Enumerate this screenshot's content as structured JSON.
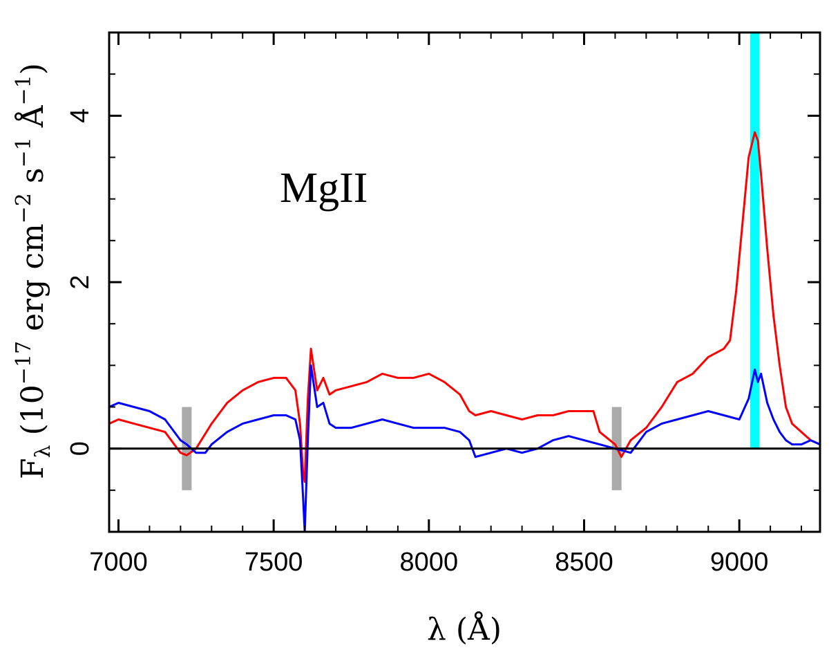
{
  "chart_data": {
    "type": "line",
    "title": "",
    "xlabel": "λ (Å)",
    "ylabel_parts": {
      "f": "F",
      "lambda_sub": "λ",
      "open": " (10",
      "exp1": "−17",
      "erg": " erg cm",
      "exp2": "−2",
      "s": " s",
      "exp3": "−1",
      "ang": " Å",
      "exp4": "−1",
      "close": ")"
    },
    "xlim": [
      6970,
      9260
    ],
    "ylim": [
      -1.0,
      5.0
    ],
    "xticks": [
      7000,
      7500,
      8000,
      8500,
      9000
    ],
    "xtick_labels": [
      "7000",
      "7500",
      "8000",
      "8500",
      "9000"
    ],
    "yticks": [
      0,
      2,
      4
    ],
    "ytick_labels": [
      "0",
      "2",
      "4"
    ],
    "annotation": "MgII",
    "zero_line": 0,
    "highlight_band": {
      "xmin": 9035,
      "xmax": 9065,
      "color": "#00ffff"
    },
    "continuum_markers": [
      {
        "x": 7220,
        "ymin": -0.5,
        "ymax": 0.5,
        "color": "#aaaaaa"
      },
      {
        "x": 8605,
        "ymin": -0.5,
        "ymax": 0.5,
        "color": "#aaaaaa"
      }
    ],
    "series": [
      {
        "name": "red spectrum",
        "color": "#ff0000",
        "x": [
          6970,
          7000,
          7050,
          7100,
          7150,
          7200,
          7220,
          7250,
          7300,
          7350,
          7400,
          7450,
          7500,
          7540,
          7570,
          7585,
          7595,
          7600,
          7610,
          7620,
          7640,
          7660,
          7680,
          7700,
          7750,
          7800,
          7850,
          7900,
          7950,
          8000,
          8050,
          8100,
          8130,
          8150,
          8200,
          8250,
          8300,
          8350,
          8400,
          8450,
          8500,
          8530,
          8550,
          8600,
          8620,
          8650,
          8700,
          8750,
          8800,
          8850,
          8900,
          8950,
          8970,
          8990,
          9010,
          9030,
          9050,
          9060,
          9070,
          9090,
          9110,
          9130,
          9150,
          9170,
          9200,
          9230,
          9260
        ],
        "y": [
          0.3,
          0.35,
          0.3,
          0.25,
          0.2,
          -0.05,
          -0.08,
          0.0,
          0.3,
          0.55,
          0.7,
          0.8,
          0.85,
          0.85,
          0.7,
          0.3,
          -0.3,
          -0.4,
          0.6,
          1.2,
          0.7,
          0.85,
          0.65,
          0.7,
          0.75,
          0.8,
          0.9,
          0.85,
          0.85,
          0.9,
          0.8,
          0.65,
          0.45,
          0.4,
          0.45,
          0.4,
          0.35,
          0.4,
          0.4,
          0.45,
          0.45,
          0.45,
          0.2,
          0.05,
          -0.1,
          0.1,
          0.25,
          0.5,
          0.8,
          0.9,
          1.1,
          1.2,
          1.3,
          1.9,
          2.7,
          3.5,
          3.8,
          3.7,
          3.3,
          2.4,
          1.6,
          1.0,
          0.5,
          0.3,
          0.2,
          0.1,
          0.05
        ]
      },
      {
        "name": "blue spectrum",
        "color": "#0000ff",
        "x": [
          6970,
          7000,
          7050,
          7100,
          7150,
          7200,
          7220,
          7250,
          7280,
          7300,
          7350,
          7400,
          7450,
          7500,
          7540,
          7570,
          7585,
          7595,
          7600,
          7610,
          7620,
          7640,
          7660,
          7680,
          7700,
          7750,
          7800,
          7850,
          7900,
          7950,
          8000,
          8050,
          8100,
          8130,
          8150,
          8200,
          8250,
          8300,
          8350,
          8400,
          8450,
          8500,
          8550,
          8600,
          8650,
          8700,
          8750,
          8800,
          8850,
          8900,
          8950,
          9000,
          9030,
          9050,
          9060,
          9070,
          9090,
          9110,
          9130,
          9150,
          9170,
          9200,
          9230,
          9260
        ],
        "y": [
          0.5,
          0.55,
          0.5,
          0.45,
          0.35,
          0.1,
          0.05,
          -0.05,
          -0.05,
          0.05,
          0.2,
          0.3,
          0.35,
          0.4,
          0.4,
          0.35,
          0.1,
          -0.6,
          -1.0,
          0.1,
          1.0,
          0.5,
          0.55,
          0.3,
          0.25,
          0.25,
          0.3,
          0.35,
          0.3,
          0.25,
          0.25,
          0.25,
          0.2,
          0.1,
          -0.1,
          -0.05,
          0.0,
          -0.05,
          0.0,
          0.1,
          0.15,
          0.1,
          0.05,
          0.0,
          -0.05,
          0.2,
          0.3,
          0.35,
          0.4,
          0.45,
          0.4,
          0.35,
          0.6,
          0.95,
          0.8,
          0.9,
          0.55,
          0.35,
          0.2,
          0.1,
          0.05,
          0.05,
          0.1,
          0.05
        ]
      }
    ]
  }
}
